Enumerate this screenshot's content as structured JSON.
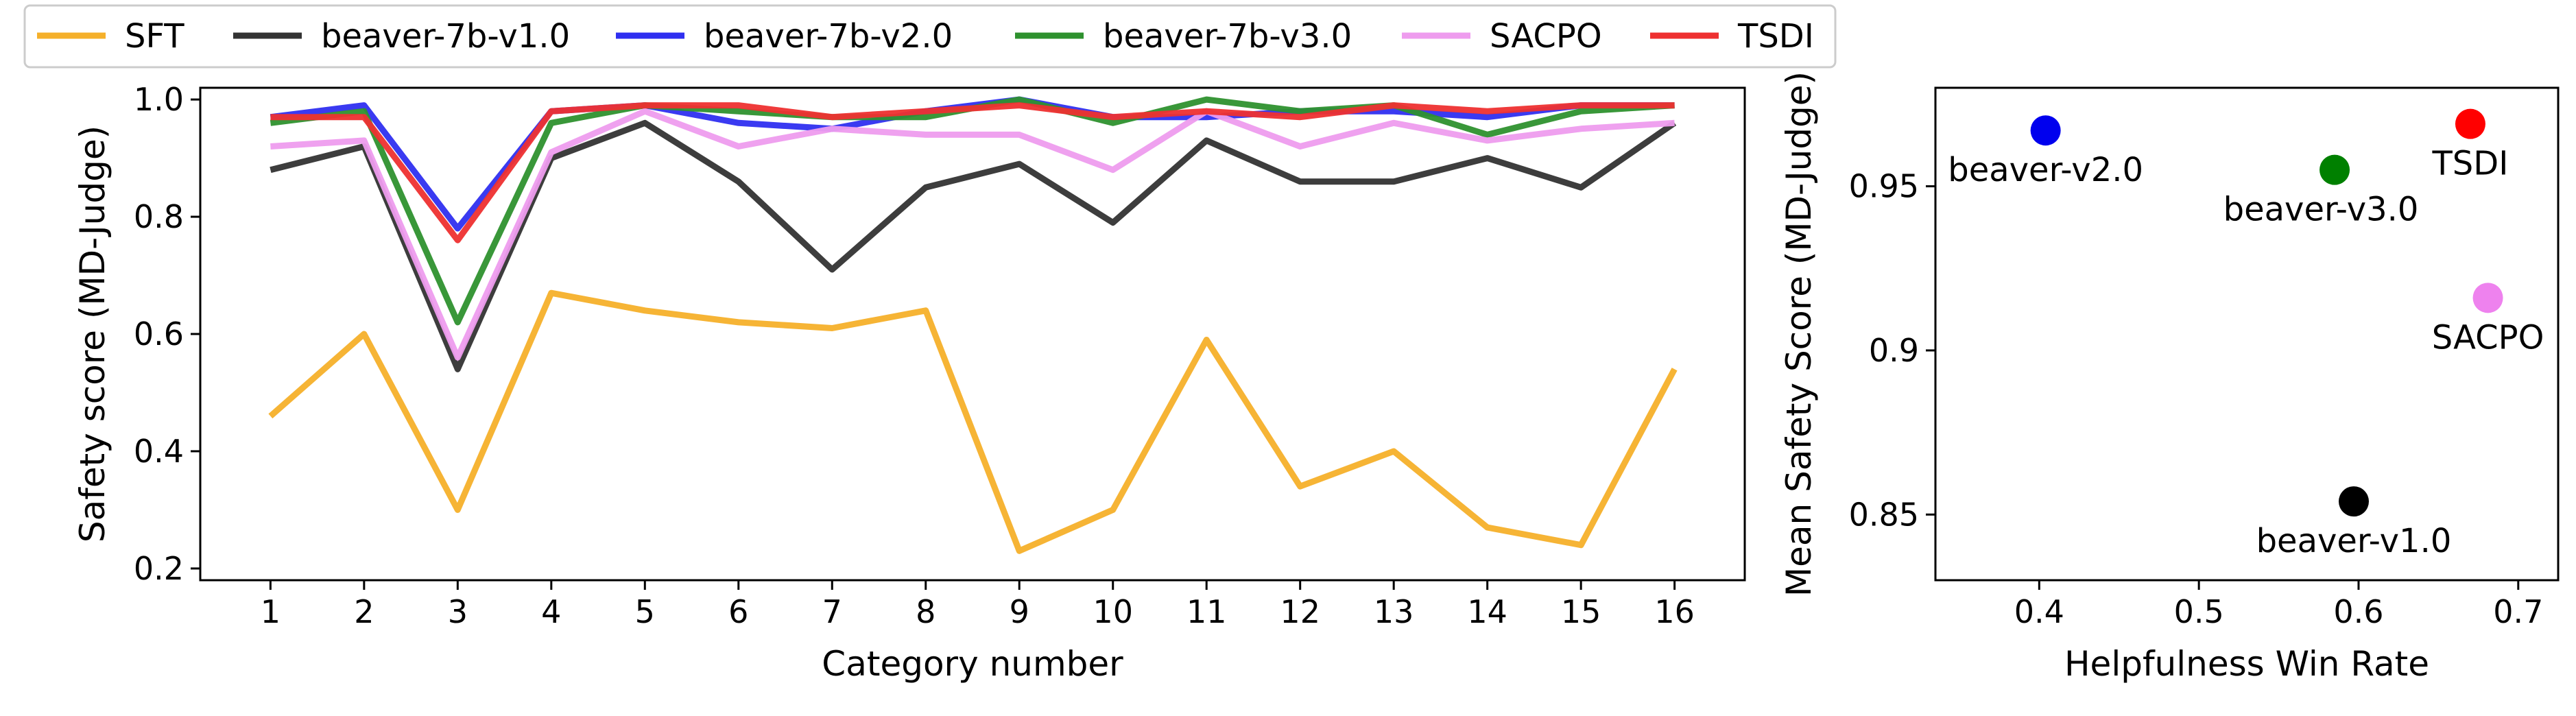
{
  "chart_data": [
    {
      "type": "line",
      "xlabel": "Category number",
      "ylabel": "Safety score (MD-Judge)",
      "x": [
        1,
        2,
        3,
        4,
        5,
        6,
        7,
        8,
        9,
        10,
        11,
        12,
        13,
        14,
        15,
        16
      ],
      "xticks": [
        "1",
        "2",
        "3",
        "4",
        "5",
        "6",
        "7",
        "8",
        "9",
        "10",
        "11",
        "12",
        "13",
        "14",
        "15",
        "16"
      ],
      "xlim": [
        0.25,
        16.75
      ],
      "ylim": [
        0.18,
        1.02
      ],
      "yticks": [
        0.2,
        0.4,
        0.6,
        0.8,
        1.0
      ],
      "ytick_labels": [
        "0.2",
        "0.4",
        "0.6",
        "0.8",
        "1.0"
      ],
      "grid": false,
      "legend": "top-left, above plots",
      "series": [
        {
          "name": "SFT",
          "color": "#f5b02a",
          "values": [
            0.46,
            0.6,
            0.3,
            0.67,
            0.64,
            0.62,
            0.61,
            0.64,
            0.23,
            0.3,
            0.59,
            0.34,
            0.4,
            0.27,
            0.24,
            0.54
          ]
        },
        {
          "name": "beaver-7b-v1.0",
          "color": "#333333",
          "values": [
            0.88,
            0.92,
            0.54,
            0.9,
            0.96,
            0.86,
            0.71,
            0.85,
            0.89,
            0.79,
            0.93,
            0.86,
            0.86,
            0.9,
            0.85,
            0.96
          ]
        },
        {
          "name": "beaver-7b-v2.0",
          "color": "#2f2ff0",
          "values": [
            0.97,
            0.99,
            0.78,
            0.98,
            0.99,
            0.96,
            0.95,
            0.98,
            1.0,
            0.97,
            0.97,
            0.98,
            0.98,
            0.97,
            0.99,
            0.99
          ]
        },
        {
          "name": "beaver-7b-v3.0",
          "color": "#2e912e",
          "values": [
            0.96,
            0.98,
            0.62,
            0.96,
            0.99,
            0.98,
            0.97,
            0.97,
            1.0,
            0.96,
            1.0,
            0.98,
            0.99,
            0.94,
            0.98,
            0.99
          ]
        },
        {
          "name": "SACPO",
          "color": "#ee9cee",
          "values": [
            0.92,
            0.93,
            0.56,
            0.91,
            0.98,
            0.92,
            0.95,
            0.94,
            0.94,
            0.88,
            0.98,
            0.92,
            0.96,
            0.93,
            0.95,
            0.96
          ]
        },
        {
          "name": "TSDI",
          "color": "#ee3030",
          "values": [
            0.97,
            0.97,
            0.76,
            0.98,
            0.99,
            0.99,
            0.97,
            0.98,
            0.99,
            0.97,
            0.98,
            0.97,
            0.99,
            0.98,
            0.99,
            0.99
          ]
        }
      ]
    },
    {
      "type": "scatter",
      "xlabel": "Helpfulness Win Rate",
      "ylabel": "Mean Safety Score (MD-Judge)",
      "xlim": [
        0.335,
        0.725
      ],
      "ylim": [
        0.83,
        0.98
      ],
      "xticks": [
        0.4,
        0.5,
        0.6,
        0.7
      ],
      "xtick_labels": [
        "0.4",
        "0.5",
        "0.6",
        "0.7"
      ],
      "yticks": [
        0.85,
        0.9,
        0.95
      ],
      "ytick_labels": [
        "0.85",
        "0.9",
        "0.95"
      ],
      "grid": false,
      "points": [
        {
          "label": "beaver-v2.0",
          "x": 0.404,
          "y": 0.967,
          "color": "#0000ee",
          "label_pos": "below"
        },
        {
          "label": "beaver-v3.0",
          "x": 0.585,
          "y": 0.955,
          "color": "#008000",
          "label_pos": "below-left"
        },
        {
          "label": "TSDI",
          "x": 0.67,
          "y": 0.969,
          "color": "#ff0000",
          "label_pos": "below"
        },
        {
          "label": "SACPO",
          "x": 0.681,
          "y": 0.916,
          "color": "#ee82ee",
          "label_pos": "below"
        },
        {
          "label": "beaver-v1.0",
          "x": 0.597,
          "y": 0.854,
          "color": "#000000",
          "label_pos": "below"
        }
      ]
    }
  ]
}
